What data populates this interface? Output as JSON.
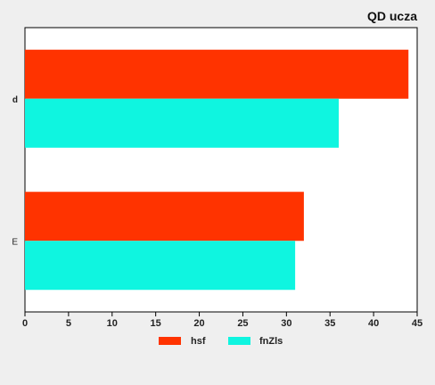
{
  "chart_data": {
    "type": "bar",
    "orientation": "horizontal",
    "title": "QD ucza",
    "categories": [
      "d",
      "E"
    ],
    "series": [
      {
        "name": "hsf",
        "values": [
          44,
          32
        ],
        "color": "#ff3300"
      },
      {
        "name": "fnZls",
        "values": [
          36,
          31
        ],
        "color": "#0ff5e0"
      }
    ],
    "xlim": [
      0,
      45
    ],
    "xticks": [
      0,
      5,
      10,
      15,
      20,
      25,
      30,
      35,
      40,
      45
    ],
    "xlabel": "",
    "ylabel": "",
    "grid": false,
    "legend_position": "bottom"
  }
}
